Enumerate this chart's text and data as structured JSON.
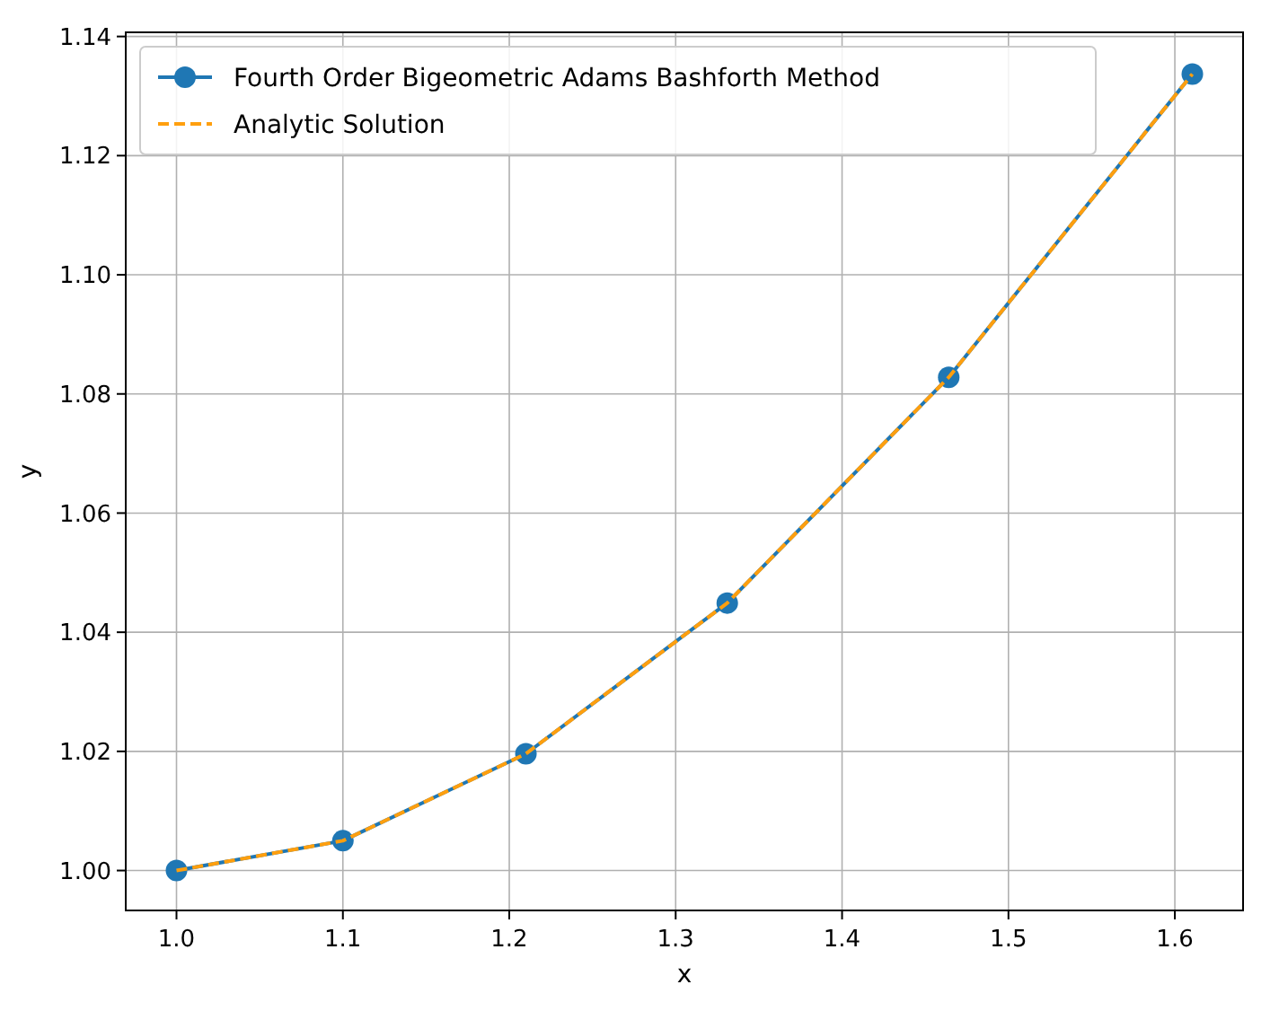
{
  "chart_data": {
    "type": "line",
    "xlabel": "x",
    "ylabel": "y",
    "x": [
      1.0,
      1.1,
      1.21,
      1.331,
      1.4641,
      1.61051
    ],
    "series": [
      {
        "name": "Fourth Order Bigeometric Adams Bashforth Method",
        "color": "#1f77b4",
        "values": [
          1.0,
          1.005,
          1.0196,
          1.0449,
          1.0828,
          1.1337
        ],
        "marker": "circle",
        "line_style": "solid"
      },
      {
        "name": "Analytic Solution",
        "color": "#ff9f0e",
        "values": [
          1.0,
          1.005,
          1.0196,
          1.0449,
          1.0828,
          1.1337
        ],
        "marker": "none",
        "line_style": "dashed"
      }
    ],
    "xlim": [
      0.9695,
      1.641
    ],
    "ylim": [
      0.9933,
      1.1407
    ],
    "xticks": [
      {
        "value": 1,
        "label": "1.0"
      },
      1.1,
      1.2,
      1.3,
      1.4,
      1.5,
      1.6
    ],
    "yticks": [
      {
        "value": 1,
        "label": "1.00"
      },
      1.02,
      1.04,
      1.06,
      1.08,
      {
        "value": 1.1,
        "label": "1.10"
      },
      1.12,
      1.14
    ],
    "grid": true,
    "legend": "top left"
  }
}
